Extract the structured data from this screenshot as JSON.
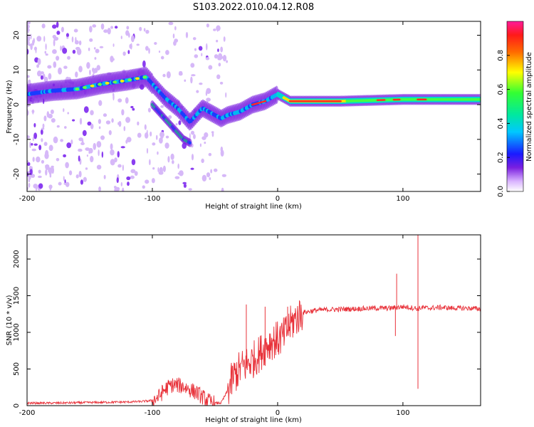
{
  "title": "S103.2022.010.04.12.R08",
  "chart_data": [
    {
      "type": "heatmap",
      "title": "S103.2022.010.04.12.R08",
      "xlabel": "Height of straight line (km)",
      "ylabel": "Frequency (Hz)",
      "xlim": [
        -200,
        162
      ],
      "ylim": [
        -25,
        24
      ],
      "x_ticks": [
        -200,
        -100,
        0,
        100
      ],
      "y_ticks": [
        -20,
        -10,
        0,
        10,
        20
      ],
      "colorbar": {
        "label": "Normalized spectral amplitude",
        "range": [
          0,
          1
        ],
        "ticks": [
          "0.0",
          "0.2",
          "0.4",
          "0.6",
          "0.8"
        ],
        "colormap": "rainbow (white → violet → blue → cyan → green → yellow → red → magenta)"
      },
      "ridge": {
        "description": "dominant Doppler frequency track",
        "x": [
          -200,
          -180,
          -160,
          -140,
          -120,
          -105,
          -100,
          -90,
          -80,
          -70,
          -60,
          -50,
          -45,
          -40,
          -30,
          -20,
          -10,
          0,
          10,
          50,
          100,
          162
        ],
        "y": [
          3,
          4,
          4.5,
          6,
          7,
          8,
          6,
          2,
          -1,
          -5,
          -1,
          -3,
          -4,
          -3,
          -2,
          0,
          1,
          3,
          1,
          1,
          1.5,
          1.5
        ]
      },
      "secondary_branch": {
        "x": [
          -100,
          -90,
          -80,
          -75,
          -70
        ],
        "y": [
          0,
          -4,
          -8,
          -10,
          -11
        ]
      }
    },
    {
      "type": "line",
      "xlabel": "Height of straight line (km)",
      "ylabel": "SNR (10 * v/v)",
      "xlim": [
        -200,
        162
      ],
      "ylim": [
        0,
        2330
      ],
      "x_ticks": [
        -200,
        -100,
        0,
        100
      ],
      "y_ticks": [
        0,
        500,
        1000,
        1500,
        2000
      ],
      "color": "#e8323a",
      "series": [
        {
          "x": [
            -200,
            -180,
            -160,
            -140,
            -120,
            -110,
            -100,
            -95,
            -90,
            -85,
            -80,
            -75,
            -70,
            -65,
            -60,
            -55,
            -50,
            -45,
            -40,
            -35,
            -30,
            -25,
            -20,
            -15,
            -10,
            -5,
            0,
            5,
            10,
            15,
            20,
            30,
            40,
            60,
            80,
            90,
            95,
            100,
            105,
            110,
            112,
            115,
            120,
            130,
            140,
            150,
            162
          ],
          "y": [
            35,
            35,
            40,
            45,
            50,
            55,
            70,
            120,
            220,
            280,
            280,
            260,
            220,
            180,
            120,
            60,
            30,
            40,
            200,
            400,
            500,
            560,
            620,
            700,
            800,
            880,
            900,
            950,
            1100,
            1200,
            1270,
            1300,
            1310,
            1320,
            1330,
            1330,
            1340,
            1350,
            1340,
            1330,
            1320,
            1340,
            1330,
            1340,
            1330,
            1330,
            1320
          ]
        }
      ],
      "spikes": [
        {
          "x": -25,
          "y": 1380
        },
        {
          "x": -10,
          "y": 1350
        },
        {
          "x": 8,
          "y": 1350
        },
        {
          "x": 95,
          "y": 1800
        },
        {
          "x": 94,
          "y": 950
        },
        {
          "x": 112,
          "y": 2330
        },
        {
          "x": 112,
          "y": 230
        }
      ]
    }
  ]
}
